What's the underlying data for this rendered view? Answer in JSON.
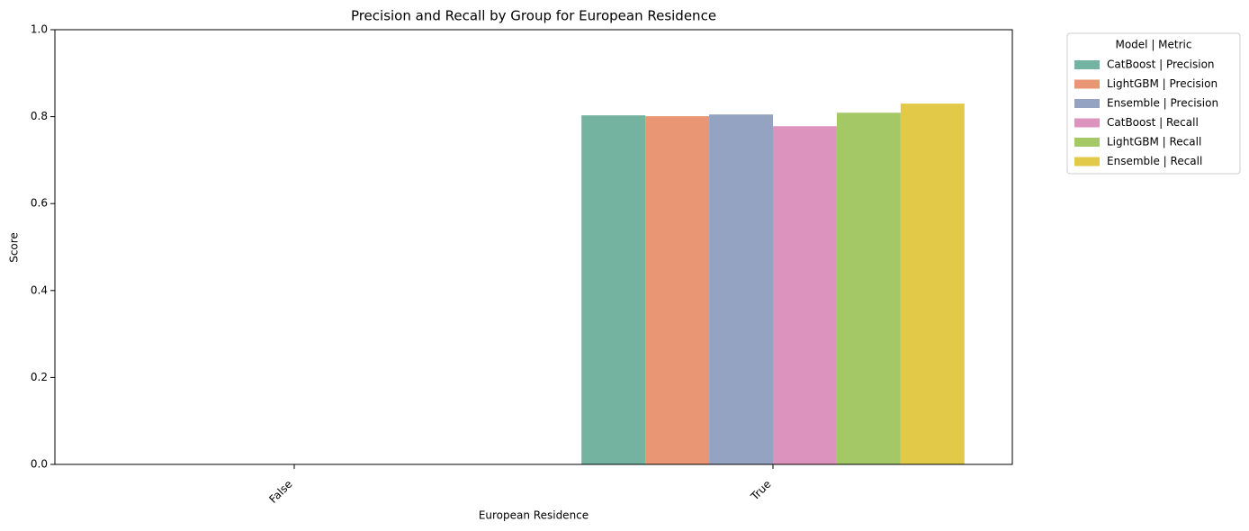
{
  "chart_data": {
    "type": "bar",
    "title": "Precision and Recall by Group for European Residence",
    "x_label": "European Residence",
    "y_label": "Score",
    "categories": [
      "False",
      "True"
    ],
    "series": [
      {
        "name": "CatBoost | Precision",
        "color": "#73b3a0",
        "values": [
          0,
          0.803
        ]
      },
      {
        "name": "LightGBM | Precision",
        "color": "#e89673",
        "values": [
          0,
          0.801
        ]
      },
      {
        "name": "Ensemble | Precision",
        "color": "#95a3c2",
        "values": [
          0,
          0.805
        ]
      },
      {
        "name": "CatBoost | Recall",
        "color": "#dc94bf",
        "values": [
          0,
          0.778
        ]
      },
      {
        "name": "LightGBM | Recall",
        "color": "#a3c865",
        "values": [
          0,
          0.809
        ]
      },
      {
        "name": "Ensemble | Recall",
        "color": "#e2ca48",
        "values": [
          0,
          0.83
        ]
      }
    ],
    "legend_title": "Model | Metric",
    "legend_position": "outside upper right",
    "ylim": [
      0,
      1
    ],
    "yticks": [
      {
        "value": 0,
        "label": "0.0"
      },
      0.2,
      0.4,
      0.6,
      0.8,
      {
        "value": 1,
        "label": "1.0"
      }
    ],
    "grid": false
  }
}
